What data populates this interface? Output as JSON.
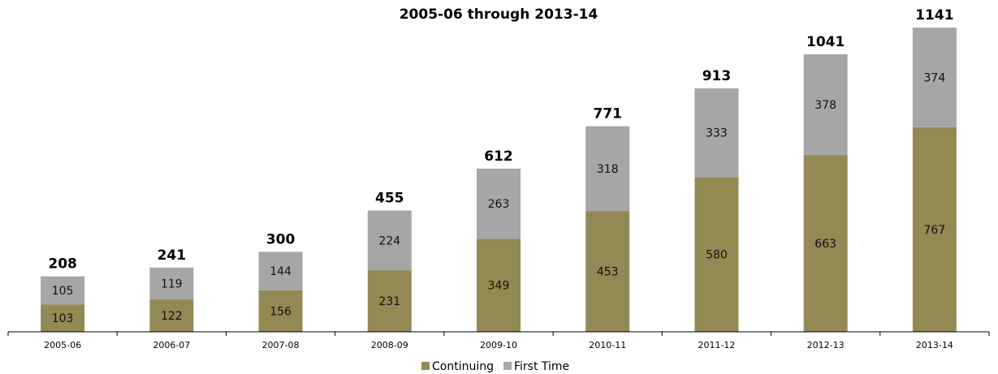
{
  "chart_data": {
    "type": "bar",
    "stacked": true,
    "title": "2005-06 through 2013-14",
    "categories": [
      "2005-06",
      "2006-07",
      "2007-08",
      "2008-09",
      "2009-10",
      "2010-11",
      "2011-12",
      "2012-13",
      "2013-14"
    ],
    "series": [
      {
        "name": "Continuing",
        "color": "#938953",
        "values": [
          103,
          122,
          156,
          231,
          349,
          453,
          580,
          663,
          767
        ]
      },
      {
        "name": "First Time",
        "color": "#a6a6a6",
        "values": [
          105,
          119,
          144,
          224,
          263,
          318,
          333,
          378,
          374
        ]
      }
    ],
    "totals": [
      208,
      241,
      300,
      455,
      612,
      771,
      913,
      1041,
      1141
    ],
    "ylim": [
      0,
      1141
    ],
    "grid": false,
    "legend_position": "bottom"
  }
}
